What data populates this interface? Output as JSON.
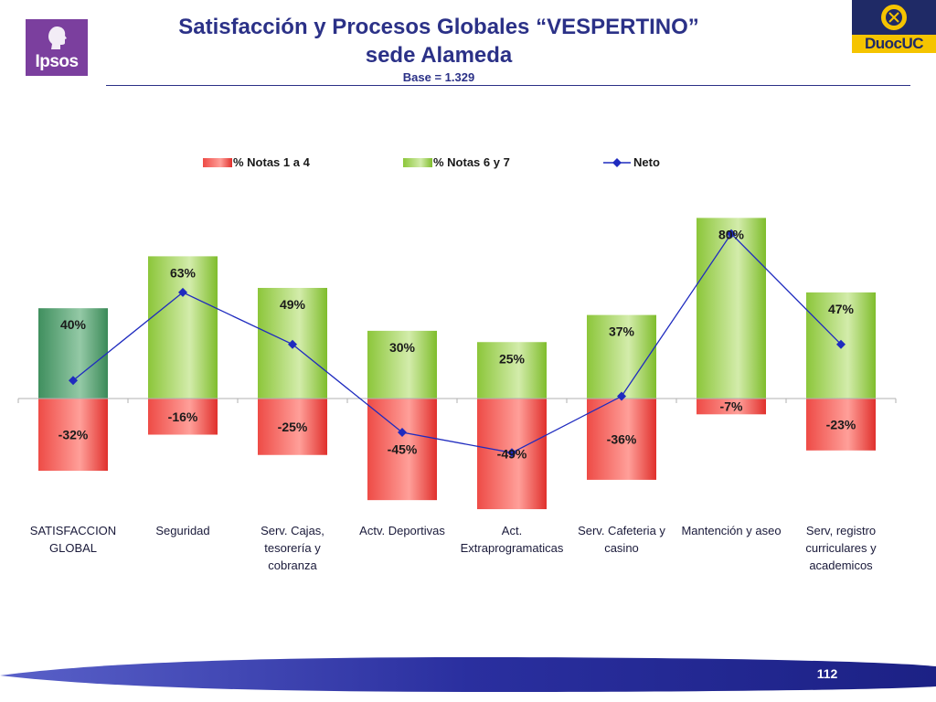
{
  "header": {
    "title_line1": "Satisfacción y Procesos Globales “VESPERTINO”",
    "title_line2": "sede Alameda",
    "base": "Base = 1.329"
  },
  "logos": {
    "left_text": "Ipsos",
    "right_text": "DuocUC"
  },
  "footer": {
    "page_number": "112"
  },
  "colors": {
    "title": "#2b3187",
    "negative": "#e8332f",
    "positive": "#86c232",
    "global": "#4a9a6a",
    "neto": "#1f2bbf"
  },
  "chart_data": {
    "type": "bar",
    "categories": [
      [
        "SATISFACCION",
        "GLOBAL"
      ],
      [
        "Seguridad"
      ],
      [
        "Serv. Cajas,",
        "tesorería y",
        "cobranza"
      ],
      [
        "Actv. Deportivas"
      ],
      [
        "Act.",
        "Extraprogramaticas"
      ],
      [
        "Serv. Cafeteria y",
        "casino"
      ],
      [
        "Mantención y aseo"
      ],
      [
        "Serv, registro",
        "curriculares y",
        "academicos"
      ]
    ],
    "series": [
      {
        "name": "% Notas 1 a 4",
        "values": [
          -32,
          -16,
          -25,
          -45,
          -49,
          -36,
          -7,
          -23
        ],
        "labels": [
          "-32%",
          "-16%",
          "-25%",
          "-45%",
          "-49%",
          "-36%",
          "-7%",
          "-23%"
        ]
      },
      {
        "name": "% Notas 6 y 7",
        "values": [
          40,
          63,
          49,
          30,
          25,
          37,
          80,
          47
        ],
        "labels": [
          "40%",
          "63%",
          "49%",
          "30%",
          "25%",
          "37%",
          "80%",
          "47%"
        ]
      },
      {
        "name": "Neto",
        "values": [
          8,
          47,
          24,
          -15,
          -24,
          1,
          73,
          24
        ]
      }
    ],
    "legend": "top",
    "grid": false
  }
}
